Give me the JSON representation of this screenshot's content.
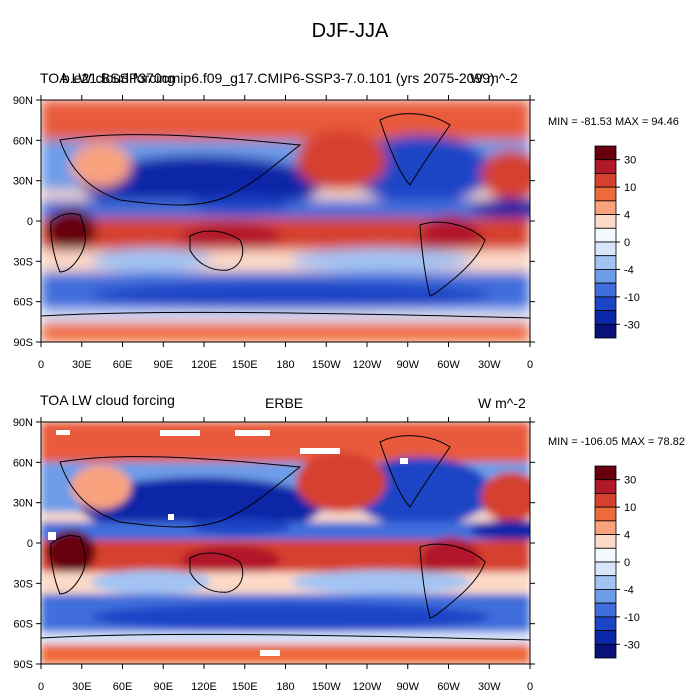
{
  "figure": {
    "title": "DJF-JJA"
  },
  "panels": [
    {
      "left_label": "TOA LW cloud forcing",
      "center_label": "",
      "right_label": "W m^-2",
      "overlay_label": "b.e21.BSSP370cmip6.f09_g17.CMIP6-SSP3-7.0.101 (yrs 2075-2099)",
      "minmax": "MIN = -81.53 MAX =  94.46"
    },
    {
      "left_label": "TOA LW cloud forcing",
      "center_label": "ERBE",
      "right_label": "W m^-2",
      "overlay_label": "",
      "minmax": "MIN = -106.05 MAX =  78.82"
    }
  ],
  "axes": {
    "lat_ticks": [
      "90N",
      "60N",
      "30N",
      "0",
      "30S",
      "60S",
      "90S"
    ],
    "lon_ticks": [
      "0",
      "30E",
      "60E",
      "90E",
      "120E",
      "150E",
      "180",
      "150W",
      "120W",
      "90W",
      "60W",
      "30W",
      "0"
    ]
  },
  "colorbar": {
    "labels": [
      "30",
      "10",
      "4",
      "0",
      "-4",
      "-10",
      "-30"
    ],
    "colors": [
      "#67000d",
      "#b2182b",
      "#d6402e",
      "#ef6a3a",
      "#f9a27e",
      "#fdd9c7",
      "#f4f8ff",
      "#d8e6fb",
      "#a3c3f3",
      "#6d9ce8",
      "#3f6edc",
      "#1c45c6",
      "#0b28a8",
      "#08127a"
    ]
  },
  "colors": {
    "land_line": "#000000",
    "background": "#ffffff"
  }
}
